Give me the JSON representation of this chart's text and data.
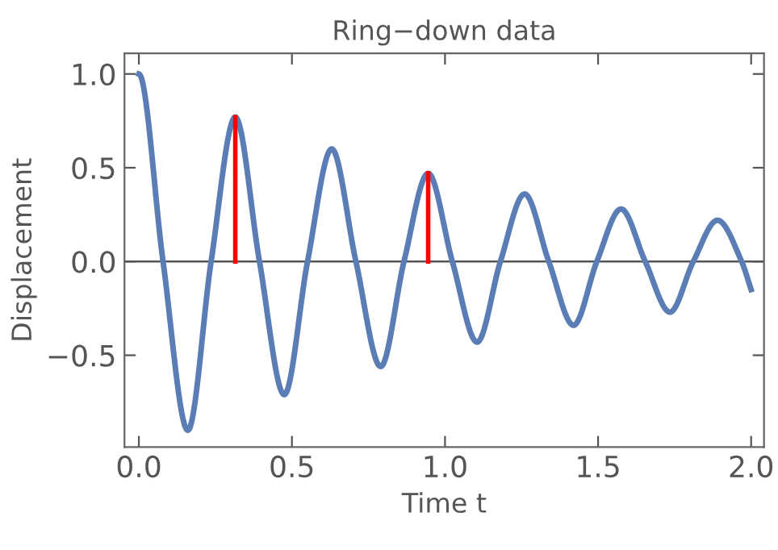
{
  "chart_data": {
    "type": "line",
    "title": "Ring−down data",
    "xlabel": "Time t",
    "ylabel": "Displacement",
    "xlim": [
      -0.047,
      2.042
    ],
    "ylim": [
      -0.99,
      1.11
    ],
    "xticks": [
      {
        "value": 0,
        "label": "0.0"
      },
      0.5,
      {
        "value": 1,
        "label": "1.0"
      },
      1.5,
      {
        "value": 2,
        "label": "2.0"
      }
    ],
    "yticks": [
      {
        "value": -0.5,
        "label": "−0.5"
      },
      {
        "value": 0.0,
        "label": "0.0"
      },
      {
        "value": 0.5,
        "label": "0.5"
      },
      {
        "value": 1.0,
        "label": "1.0"
      }
    ],
    "ref_lines": [
      {
        "axis": "y",
        "value": 0,
        "color": "#555555"
      }
    ],
    "grid": false,
    "legend": false,
    "marker": "none",
    "line_style": "solid",
    "series": [
      {
        "color": "#5b7db5",
        "x": [
          0,
          0.079,
          0.16,
          0.236,
          0.315,
          0.394,
          0.475,
          0.551,
          0.63,
          0.709,
          0.79,
          0.866,
          0.945,
          1.024,
          1.105,
          1.181,
          1.26,
          1.339,
          1.42,
          1.496,
          1.575,
          1.654,
          1.735,
          1.811,
          1.89,
          1.969,
          2.0
        ],
        "values": [
          1.0,
          0,
          -0.9,
          0,
          0.77,
          0,
          -0.71,
          0,
          0.6,
          0,
          -0.56,
          0,
          0.47,
          0,
          -0.43,
          0,
          0.36,
          0,
          -0.34,
          0,
          0.28,
          0,
          -0.27,
          0,
          0.22,
          0,
          -0.15
        ]
      },
      {
        "color": "#ff0000",
        "x": [
          0.315,
          0.315
        ],
        "values": [
          0,
          0.77
        ]
      },
      {
        "color": "#ff0000",
        "x": [
          0.945,
          0.945
        ],
        "values": [
          0,
          0.47
        ]
      }
    ]
  }
}
